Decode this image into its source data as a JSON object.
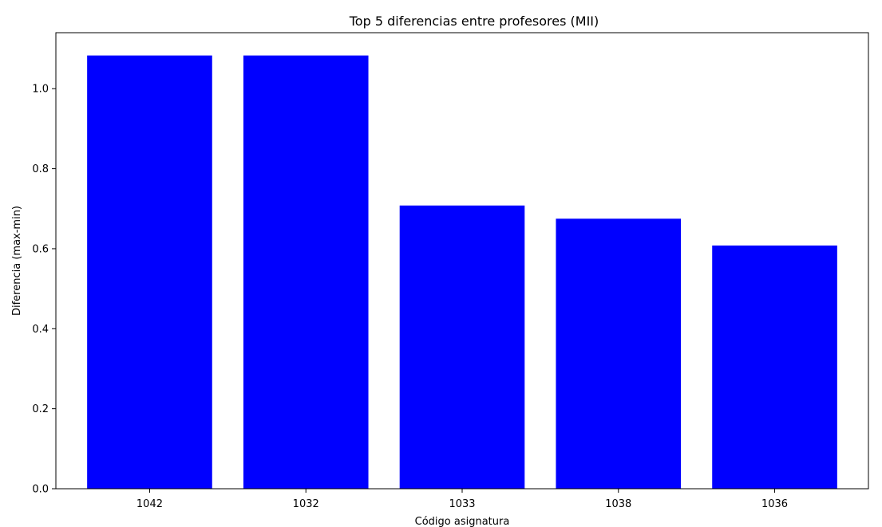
{
  "chart_data": {
    "type": "bar",
    "title": "Top 5 diferencias entre profesores (MII)",
    "xlabel": "Código asignatura",
    "ylabel": "Diferencia (max-min)",
    "categories": [
      "1042",
      "1032",
      "1033",
      "1038",
      "1036"
    ],
    "values": [
      1.083,
      1.083,
      0.708,
      0.675,
      0.608
    ],
    "ylim": [
      0,
      1.14
    ],
    "yticks": [
      0.0,
      0.2,
      0.4,
      0.6,
      0.8,
      1.0
    ],
    "ytick_labels": [
      "0.0",
      "0.2",
      "0.4",
      "0.6",
      "0.8",
      "1.0"
    ],
    "bar_color": "#0000ff",
    "grid": false,
    "legend": "none"
  }
}
